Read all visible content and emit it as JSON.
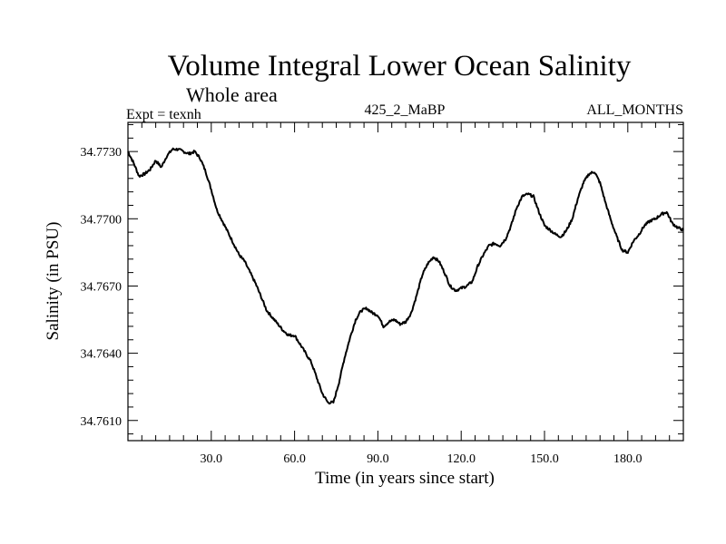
{
  "colors": {
    "background": "#ffffff",
    "line": "#000000"
  },
  "chart_data": {
    "type": "line",
    "title": "Volume Integral Lower Ocean Salinity",
    "subtitle": "Whole area",
    "header_left": "Expt = texnh",
    "header_center": "425_2_MaBP",
    "header_right": "ALL_MONTHS",
    "xlabel": "Time (in years since start)",
    "ylabel": "Salinity (in PSU)",
    "xlim": [
      0,
      200
    ],
    "ylim": [
      34.7601,
      34.7743
    ],
    "x_ticks": [
      30,
      60,
      90,
      120,
      150,
      180
    ],
    "x_tick_labels": [
      "30.0",
      "60.0",
      "90.0",
      "120.0",
      "150.0",
      "180.0"
    ],
    "y_ticks": [
      34.761,
      34.764,
      34.767,
      34.77,
      34.773
    ],
    "y_tick_labels": [
      "34.7610",
      "34.7640",
      "34.7670",
      "34.7700",
      "34.7730"
    ],
    "series": [
      {
        "name": "Salinity",
        "x": [
          0,
          2,
          4,
          6,
          8,
          10,
          12,
          14,
          16,
          18,
          20,
          22,
          24,
          26,
          28,
          30,
          32,
          34,
          36,
          38,
          40,
          42,
          44,
          46,
          48,
          50,
          52,
          54,
          56,
          58,
          60,
          62,
          64,
          66,
          68,
          70,
          72,
          74,
          76,
          78,
          80,
          82,
          84,
          86,
          88,
          90,
          92,
          94,
          96,
          98,
          100,
          102,
          104,
          106,
          108,
          110,
          112,
          114,
          116,
          118,
          120,
          122,
          124,
          126,
          128,
          130,
          132,
          134,
          136,
          138,
          140,
          142,
          144,
          146,
          148,
          150,
          152,
          154,
          156,
          158,
          160,
          162,
          164,
          166,
          168,
          170,
          172,
          174,
          176,
          178,
          180,
          182,
          184,
          186,
          188,
          190,
          192,
          194,
          196,
          198,
          200
        ],
        "values": [
          34.773,
          34.7725,
          34.7719,
          34.772,
          34.7722,
          34.7726,
          34.7723,
          34.7728,
          34.7731,
          34.7731,
          34.773,
          34.7729,
          34.773,
          34.7727,
          34.7721,
          34.7713,
          34.7704,
          34.7699,
          34.7694,
          34.7689,
          34.7684,
          34.7681,
          34.7676,
          34.7671,
          34.7665,
          34.7659,
          34.7656,
          34.7653,
          34.765,
          34.7648,
          34.7648,
          34.7644,
          34.764,
          34.7636,
          34.7629,
          34.7622,
          34.7618,
          34.7618,
          34.7627,
          34.7638,
          34.7647,
          34.7655,
          34.7659,
          34.766,
          34.7658,
          34.7657,
          34.7652,
          34.7654,
          34.7655,
          34.7653,
          34.7654,
          34.7658,
          34.7666,
          34.7675,
          34.768,
          34.7683,
          34.7681,
          34.7676,
          34.767,
          34.7668,
          34.7669,
          34.767,
          34.7672,
          34.7679,
          34.7684,
          34.7688,
          34.7689,
          34.7688,
          34.7691,
          34.7697,
          34.7705,
          34.771,
          34.7711,
          34.771,
          34.7703,
          34.7697,
          34.7695,
          34.7693,
          34.7692,
          34.7695,
          34.77,
          34.7709,
          34.7716,
          34.772,
          34.7721,
          34.7716,
          34.7707,
          34.7699,
          34.7692,
          34.7686,
          34.7685,
          34.769,
          34.7693,
          34.7697,
          34.7699,
          34.77,
          34.7702,
          34.7703,
          34.7698,
          34.7696,
          34.7695
        ]
      }
    ]
  }
}
